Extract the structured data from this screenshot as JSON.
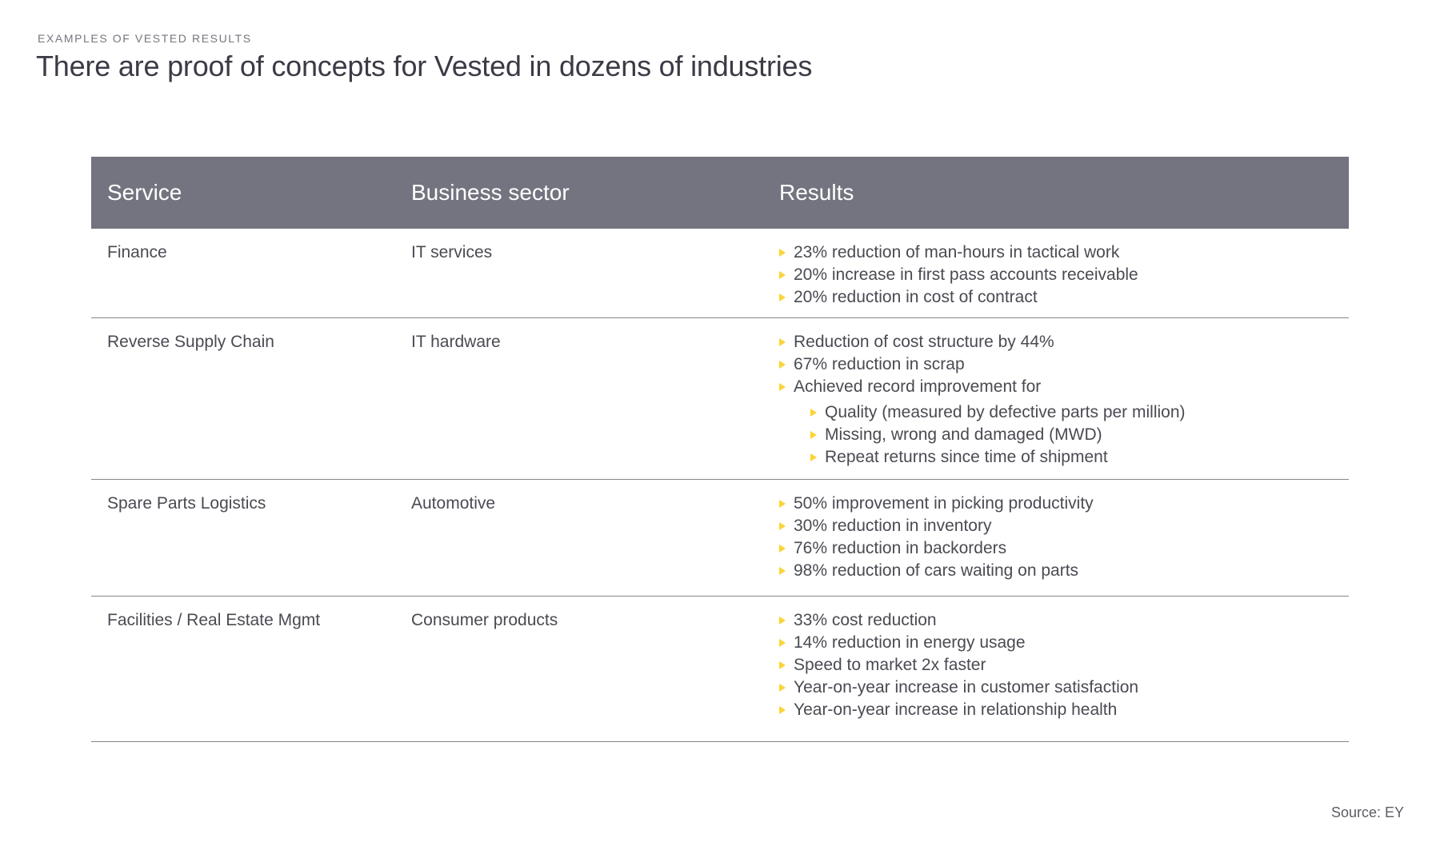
{
  "page": {
    "eyebrow": "EXAMPLES OF VESTED RESULTS",
    "title": "There are proof of concepts for Vested in dozens of industries",
    "source": "Source: EY"
  },
  "colors": {
    "header_bg": "#747480",
    "header_text": "#ffffff",
    "body_text": "#4a4a53",
    "title_text": "#3b3b46",
    "eyebrow_text": "#75757f",
    "bullet": "#fcd434",
    "separator": "#85858e",
    "source_text": "#5c5c66"
  },
  "table": {
    "columns": [
      "Service",
      "Business sector",
      "Results"
    ],
    "rows": [
      {
        "service": "Finance",
        "sector": "IT services",
        "results": [
          {
            "text": "23% reduction of man-hours in tactical work"
          },
          {
            "text": "20% increase in first pass accounts receivable"
          },
          {
            "text": "20% reduction in cost of contract"
          }
        ]
      },
      {
        "service": "Reverse Supply Chain",
        "sector": "IT hardware",
        "results": [
          {
            "text": "Reduction of cost structure by 44%"
          },
          {
            "text": "67% reduction in scrap"
          },
          {
            "text": "Achieved record improvement for",
            "children": [
              "Quality (measured by defective parts per million)",
              "Missing, wrong and damaged (MWD)",
              "Repeat returns since time of shipment"
            ]
          }
        ]
      },
      {
        "service": "Spare Parts Logistics",
        "sector": "Automotive",
        "results": [
          {
            "text": "50% improvement in picking productivity"
          },
          {
            "text": "30% reduction in inventory"
          },
          {
            "text": "76% reduction in backorders"
          },
          {
            "text": "98% reduction of cars waiting on parts"
          }
        ]
      },
      {
        "service": "Facilities / Real Estate Mgmt",
        "sector": "Consumer products",
        "results": [
          {
            "text": "33% cost reduction"
          },
          {
            "text": "14% reduction in energy usage"
          },
          {
            "text": "Speed to market 2x faster"
          },
          {
            "text": "Year-on-year increase in customer satisfaction"
          },
          {
            "text": "Year-on-year increase in relationship health"
          }
        ]
      }
    ]
  }
}
